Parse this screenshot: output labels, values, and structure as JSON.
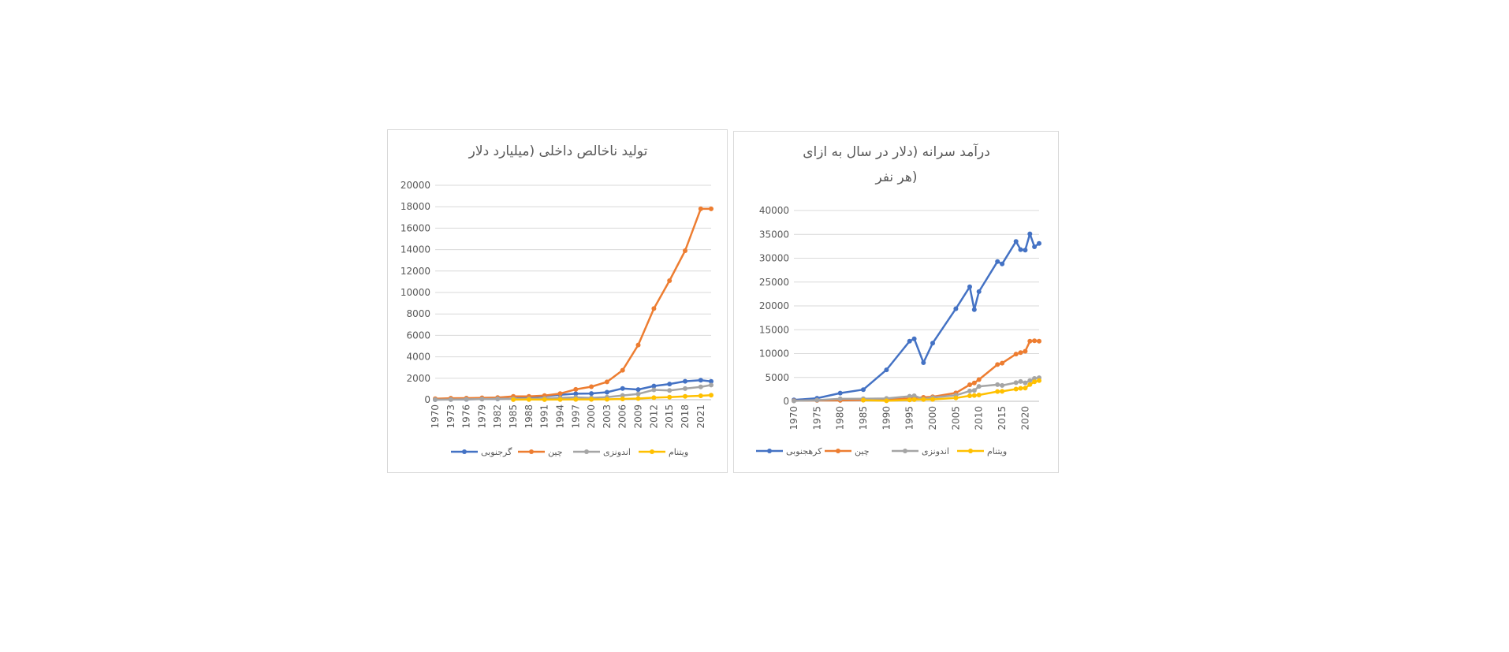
{
  "chart_data": [
    {
      "type": "line",
      "title": "تولید ناخالص داخلی (میلیارد دلار",
      "xlabel": "",
      "ylabel": "",
      "ylim": [
        0,
        20000
      ],
      "yticks": [
        "0",
        "2000",
        "4000",
        "6000",
        "8000",
        "10000",
        "12000",
        "14000",
        "16000",
        "18000",
        "20000"
      ],
      "xticks": [
        "1970",
        "1973",
        "1976",
        "1979",
        "1982",
        "1985",
        "1988",
        "1991",
        "1994",
        "1997",
        "2000",
        "2003",
        "2006",
        "2009",
        "2012",
        "2015",
        "2018",
        "2021"
      ],
      "x": [
        1970,
        1973,
        1976,
        1979,
        1982,
        1985,
        1988,
        1991,
        1994,
        1997,
        2000,
        2003,
        2006,
        2009,
        2012,
        2015,
        2018,
        2021,
        2023
      ],
      "series": [
        {
          "name": "گرجنوبی",
          "color": "#4472c4",
          "values": [
            10,
            15,
            30,
            65,
            75,
            100,
            200,
            330,
            460,
            560,
            580,
            700,
            1050,
            950,
            1280,
            1460,
            1720,
            1820,
            1710
          ]
        },
        {
          "name": "چین",
          "color": "#ed7d31",
          "values": [
            90,
            140,
            150,
            180,
            200,
            310,
            310,
            380,
            570,
            960,
            1210,
            1660,
            2750,
            5100,
            8500,
            11100,
            13900,
            17800,
            17800
          ]
        },
        {
          "name": "اندونزی",
          "color": "#a5a5a5",
          "values": [
            10,
            20,
            40,
            60,
            80,
            90,
            90,
            120,
            180,
            220,
            170,
            240,
            400,
            540,
            920,
            860,
            1040,
            1190,
            1370
          ]
        },
        {
          "name": "ویتنام",
          "color": "#ffc000",
          "values": [
            null,
            null,
            null,
            null,
            null,
            10,
            20,
            10,
            20,
            30,
            30,
            40,
            70,
            110,
            190,
            240,
            310,
            370,
            430
          ]
        }
      ],
      "legend": "bottom"
    },
    {
      "type": "line",
      "title": "درآمد سرانه (دلار در سال به ازای هر نفر)",
      "title_lines": [
        "درآمد سرانه (دلار در سال به ازای",
        "هر نفر)"
      ],
      "xlabel": "",
      "ylabel": "",
      "ylim": [
        0,
        40000
      ],
      "yticks": [
        "0",
        "5000",
        "10000",
        "15000",
        "20000",
        "25000",
        "30000",
        "35000",
        "40000"
      ],
      "xticks": [
        "1970",
        "1975",
        "1980",
        "1985",
        "1990",
        "1995",
        "2000",
        "2005",
        "2010",
        "2015",
        "2020"
      ],
      "x": [
        1970,
        1975,
        1980,
        1985,
        1990,
        1995,
        1996,
        1998,
        2000,
        2005,
        2008,
        2009,
        2010,
        2014,
        2015,
        2018,
        2019,
        2020,
        2021,
        2022,
        2023
      ],
      "series": [
        {
          "name": "کرهجنوبی",
          "color": "#4472c4",
          "values": [
            280,
            640,
            1720,
            2450,
            6600,
            12600,
            13100,
            8100,
            12200,
            19400,
            24000,
            19200,
            23000,
            29300,
            28800,
            33500,
            31800,
            31700,
            35100,
            32400,
            33100
          ]
        },
        {
          "name": "چین",
          "color": "#ed7d31",
          "values": [
            110,
            180,
            190,
            290,
            320,
            610,
            710,
            830,
            960,
            1750,
            3470,
            3830,
            4550,
            7700,
            8000,
            9900,
            10200,
            10500,
            12600,
            12700,
            12600
          ]
        },
        {
          "name": "اندونزی",
          "color": "#a5a5a5",
          "values": [
            80,
            240,
            520,
            530,
            600,
            1050,
            1150,
            480,
            800,
            1260,
            2170,
            2260,
            3120,
            3490,
            3330,
            3900,
            4150,
            3870,
            4330,
            4790,
            4940
          ]
        },
        {
          "name": "ویتنام",
          "color": "#ffc000",
          "values": [
            null,
            null,
            null,
            230,
            95,
            290,
            340,
            360,
            390,
            690,
            1160,
            1230,
            1330,
            2050,
            2080,
            2560,
            2720,
            2780,
            3500,
            4100,
            4350
          ]
        }
      ],
      "legend": "bottom"
    }
  ]
}
